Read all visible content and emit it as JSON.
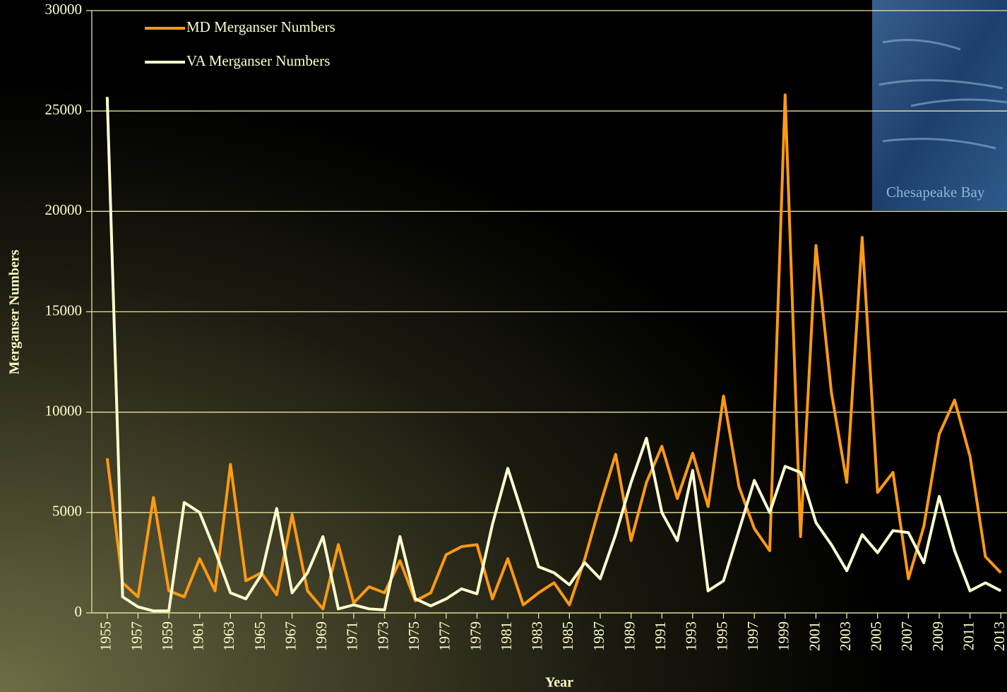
{
  "chart_data": {
    "type": "line",
    "x_label": "Year",
    "y_label": "Merganser Numbers",
    "x": [
      1955,
      1956,
      1957,
      1958,
      1959,
      1960,
      1961,
      1962,
      1963,
      1964,
      1965,
      1966,
      1967,
      1968,
      1969,
      1970,
      1971,
      1972,
      1973,
      1974,
      1975,
      1976,
      1977,
      1978,
      1979,
      1980,
      1981,
      1982,
      1983,
      1984,
      1985,
      1986,
      1987,
      1988,
      1989,
      1990,
      1991,
      1992,
      1993,
      1994,
      1995,
      1996,
      1997,
      1998,
      1999,
      2000,
      2001,
      2002,
      2003,
      2004,
      2005,
      2006,
      2007,
      2008,
      2009,
      2010,
      2011,
      2012,
      2013
    ],
    "series": [
      {
        "name": "MD Merganser Numbers",
        "color": "#ff9a12",
        "values": [
          7700,
          1500,
          800,
          5750,
          1100,
          800,
          2700,
          1100,
          7400,
          1600,
          2000,
          900,
          4900,
          1100,
          200,
          3400,
          500,
          1300,
          1000,
          2600,
          600,
          1000,
          2900,
          3300,
          3400,
          700,
          2700,
          400,
          1000,
          1500,
          400,
          2700,
          5400,
          7900,
          3600,
          6500,
          8300,
          5700,
          7950,
          5300,
          10800,
          6300,
          4200,
          3100,
          25800,
          3800,
          18300,
          11000,
          6500,
          18700,
          6000,
          7000,
          1700,
          4300,
          8900,
          10600,
          7800,
          2800,
          2000
        ]
      },
      {
        "name": "VA Merganser Numbers",
        "color": "#ffffd0",
        "values": [
          25700,
          800,
          300,
          100,
          100,
          5500,
          5000,
          3100,
          1000,
          700,
          1900,
          5200,
          1000,
          2000,
          3800,
          200,
          400,
          200,
          150,
          3800,
          700,
          350,
          700,
          1200,
          950,
          4400,
          7200,
          4800,
          2300,
          2000,
          1400,
          2500,
          1700,
          3900,
          6500,
          8700,
          5000,
          3600,
          7100,
          1100,
          1600,
          4100,
          6600,
          5000,
          7300,
          7000,
          4500,
          3400,
          2100,
          3900,
          3000,
          4100,
          4000,
          2500,
          5800,
          3100,
          1100,
          1500,
          1100
        ]
      }
    ],
    "xlim": [
      1954,
      2013.4
    ],
    "xticks": [
      1955,
      1957,
      1959,
      1961,
      1963,
      1965,
      1967,
      1969,
      1971,
      1973,
      1975,
      1977,
      1979,
      1981,
      1983,
      1985,
      1987,
      1989,
      1991,
      1993,
      1995,
      1997,
      1999,
      2001,
      2003,
      2005,
      2007,
      2009,
      2011,
      2013
    ],
    "ylim": [
      0,
      30000
    ],
    "yticks": [
      0,
      5000,
      10000,
      15000,
      20000,
      25000,
      30000
    ],
    "grid": true,
    "legend": "upper left"
  },
  "image_caption": "Chesapeake Bay"
}
